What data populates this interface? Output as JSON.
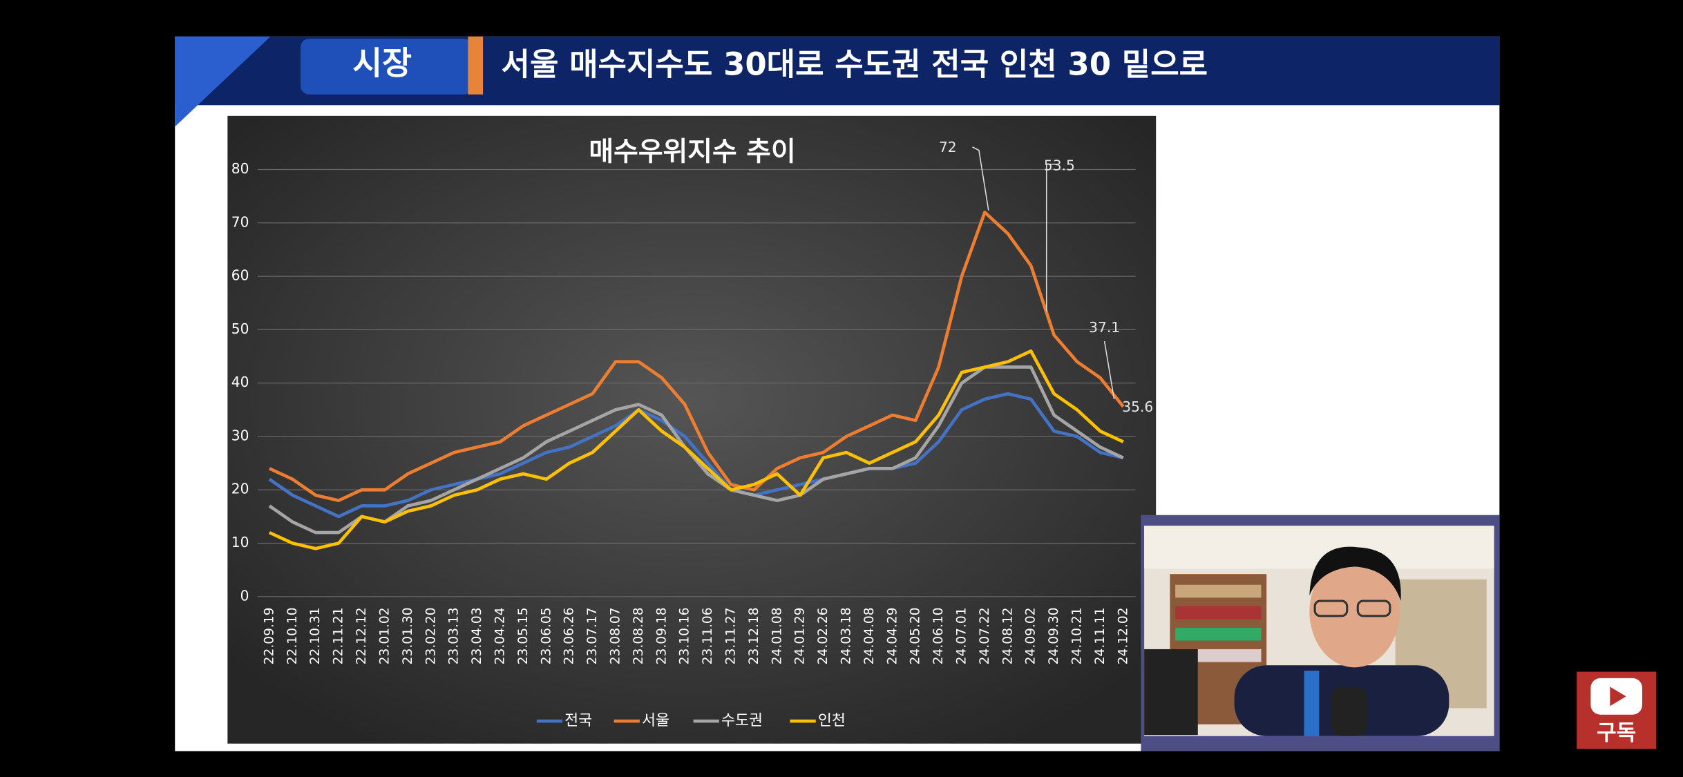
{
  "header": {
    "tag": "시장",
    "title": "서울 매수지수도 30대로  수도권 전국 인천 30 밑으로"
  },
  "subscribe": "구독",
  "chart_data": {
    "type": "line",
    "title": "매수우위지수 추이",
    "categories": [
      "22.09.19",
      "22.10.10",
      "22.10.31",
      "22.11.21",
      "22.12.12",
      "23.01.02",
      "23.01.30",
      "23.02.20",
      "23.03.13",
      "23.04.03",
      "23.04.24",
      "23.05.15",
      "23.06.05",
      "23.06.26",
      "23.07.17",
      "23.08.07",
      "23.08.28",
      "23.09.18",
      "23.10.16",
      "23.11.06",
      "23.11.27",
      "23.12.18",
      "24.01.08",
      "24.01.29",
      "24.02.26",
      "24.03.18",
      "24.04.08",
      "24.04.29",
      "24.05.20",
      "24.06.10",
      "24.07.01",
      "24.07.22",
      "24.08.12",
      "24.09.02",
      "24.09.30",
      "24.10.21",
      "24.11.11",
      "24.12.02"
    ],
    "series": [
      {
        "name": "전국",
        "color": "#4472c4",
        "values": [
          22,
          19,
          17,
          15,
          17,
          17,
          18,
          20,
          21,
          22,
          23,
          25,
          27,
          28,
          30,
          32,
          35,
          33,
          30,
          25,
          20,
          19,
          20,
          21,
          22,
          23,
          24,
          24,
          25,
          29,
          35,
          37,
          38,
          37,
          31,
          30,
          27,
          26
        ]
      },
      {
        "name": "서울",
        "color": "#ed7d31",
        "values": [
          24,
          22,
          19,
          18,
          20,
          20,
          23,
          25,
          27,
          28,
          29,
          32,
          34,
          36,
          38,
          44,
          44,
          41,
          36,
          27,
          21,
          20,
          24,
          26,
          27,
          30,
          32,
          34,
          33,
          43,
          60,
          72,
          68,
          62,
          49,
          44,
          41,
          35.6
        ]
      },
      {
        "name": "수도권",
        "color": "#a5a5a5",
        "values": [
          17,
          14,
          12,
          12,
          15,
          14,
          17,
          18,
          20,
          22,
          24,
          26,
          29,
          31,
          33,
          35,
          36,
          34,
          28,
          23,
          20,
          19,
          18,
          19,
          22,
          23,
          24,
          24,
          26,
          32,
          40,
          43,
          43,
          43,
          34,
          31,
          28,
          26
        ]
      },
      {
        "name": "인천",
        "color": "#ffc000",
        "values": [
          12,
          10,
          9,
          10,
          15,
          14,
          16,
          17,
          19,
          20,
          22,
          23,
          22,
          25,
          27,
          31,
          35,
          31,
          28,
          24,
          20,
          21,
          23,
          19,
          26,
          27,
          25,
          27,
          29,
          34,
          42,
          43,
          44,
          46,
          38,
          35,
          31,
          29
        ]
      }
    ],
    "annotations": [
      "72",
      "53.5",
      "37.1",
      "35.6"
    ],
    "ylim": [
      0,
      80
    ],
    "yticks": [
      0,
      10,
      20,
      30,
      40,
      50,
      60,
      70,
      80
    ],
    "grid": true,
    "legend": "bottom"
  }
}
